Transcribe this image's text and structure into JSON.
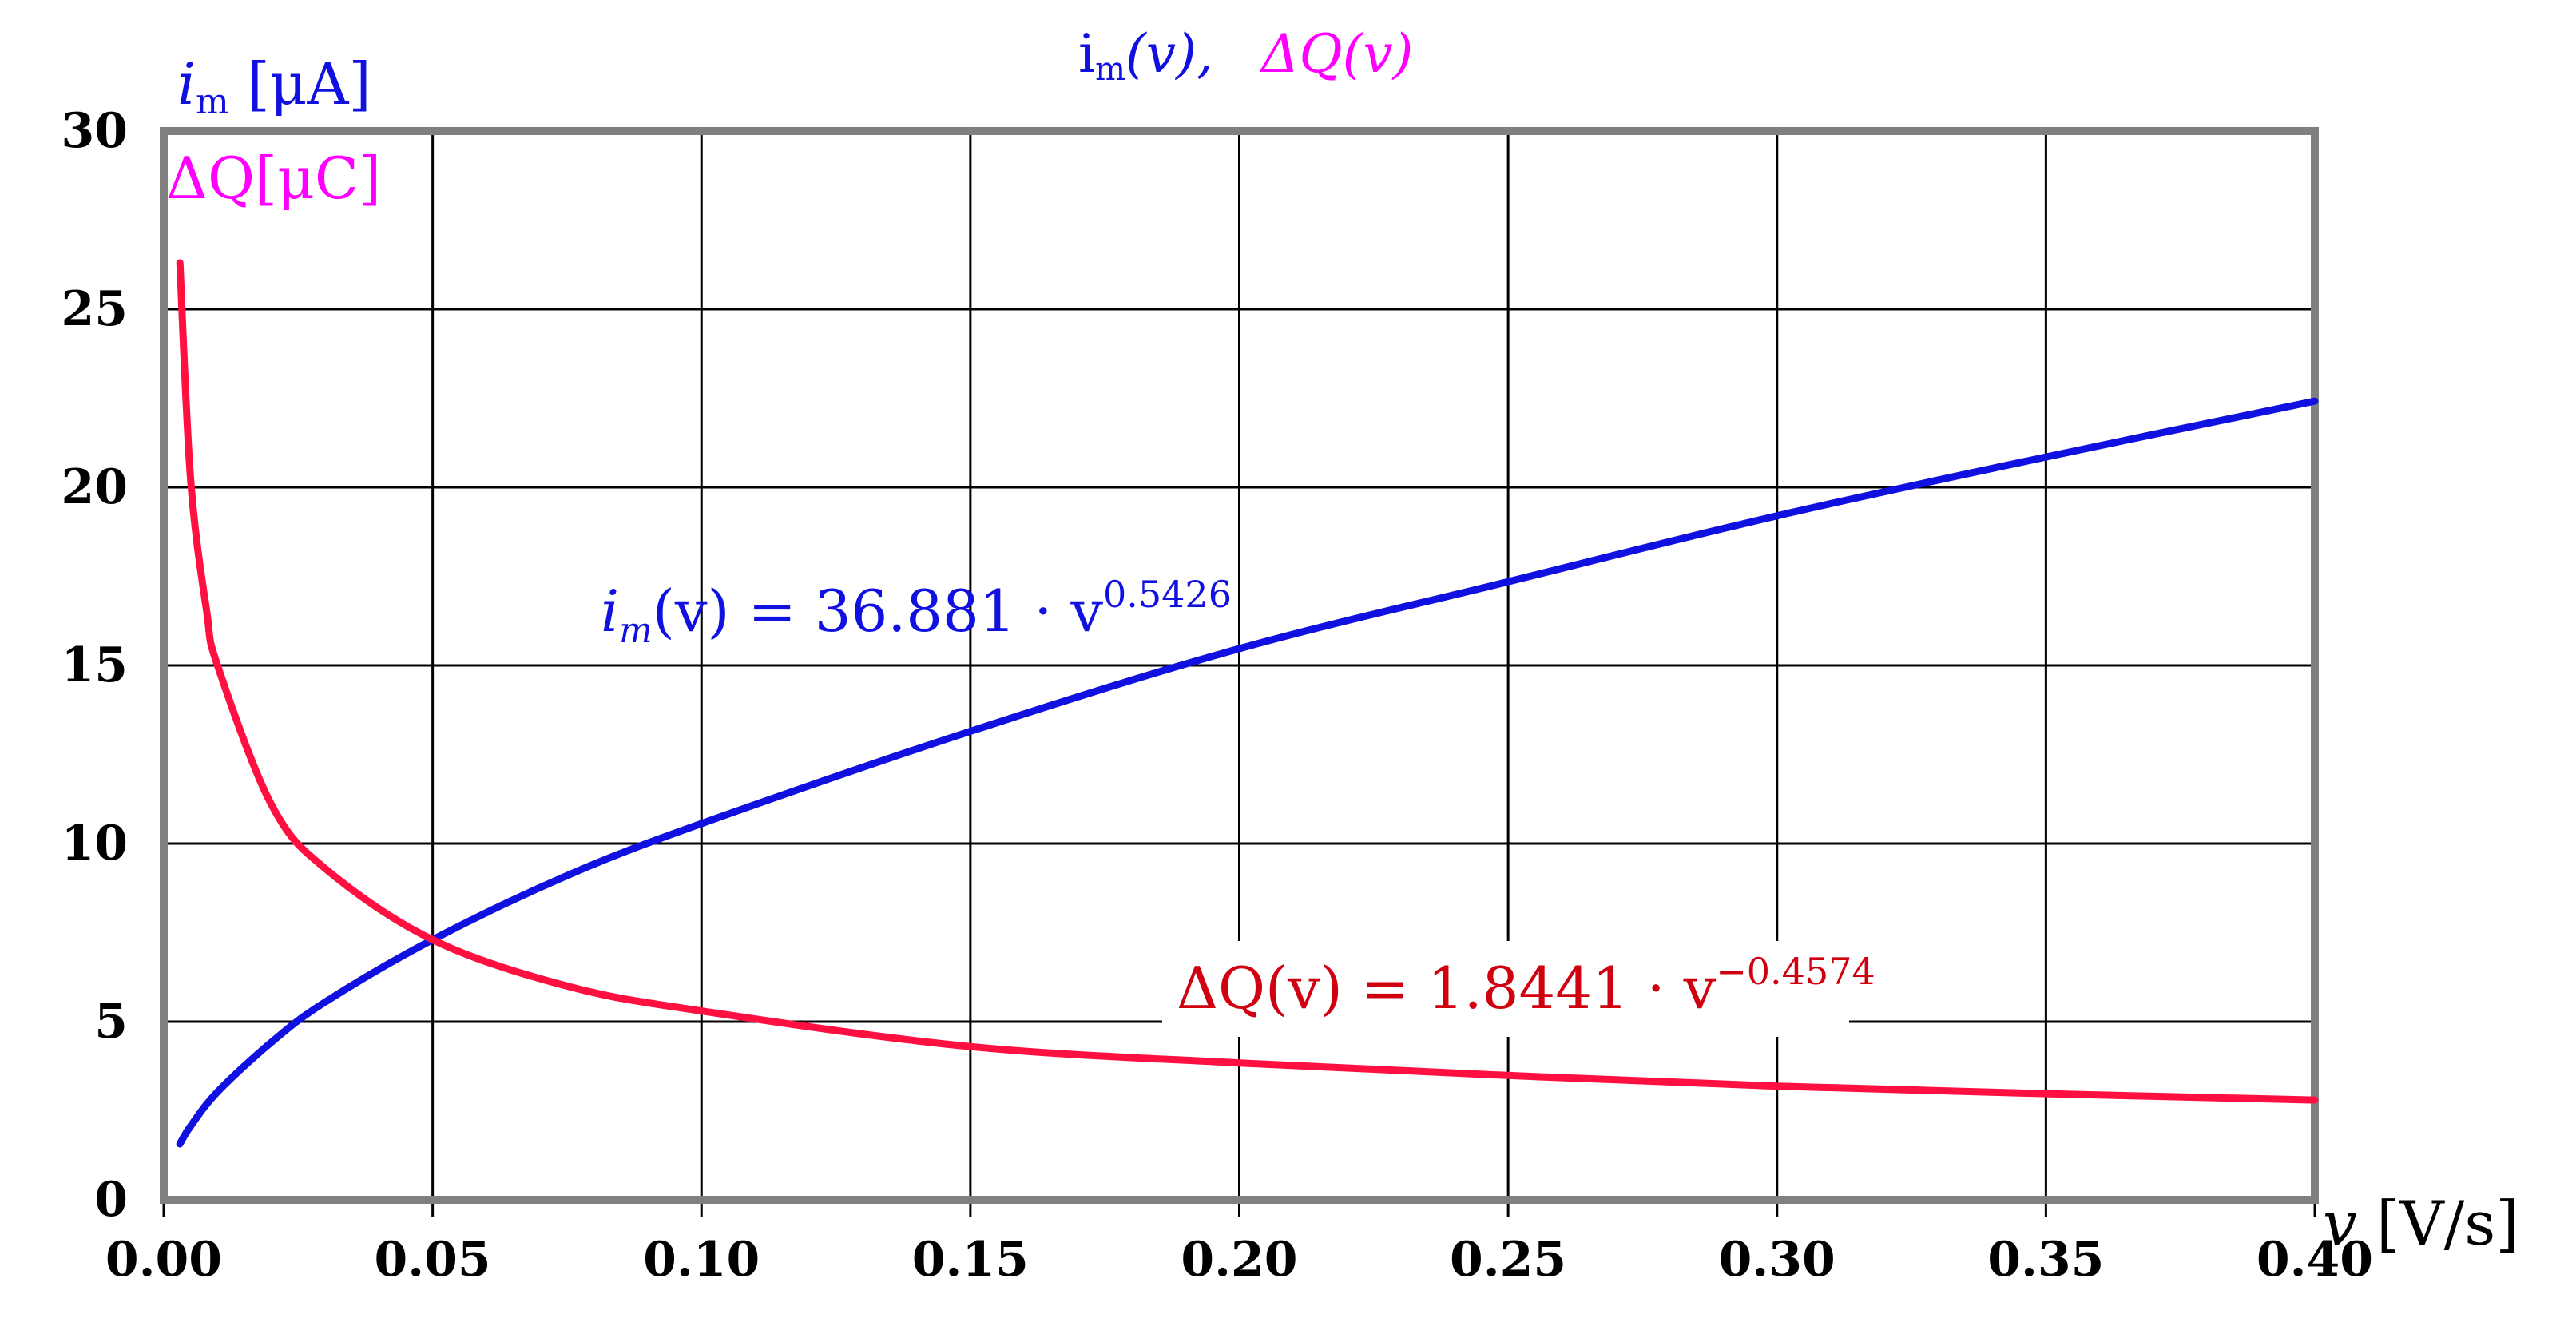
{
  "chart_data": {
    "type": "line",
    "title": {
      "im_label": "i",
      "im_sub": "m",
      "im_arg": "(v),",
      "dq_label": "ΔQ(v)"
    },
    "ylabel": {
      "line1_var": "i",
      "line1_sub": "m",
      "line1_unit": " [μA]",
      "line2": "ΔQ[μC]"
    },
    "xlabel": {
      "var": "v",
      "unit": " [V/s]"
    },
    "xlim": [
      0,
      0.4
    ],
    "ylim": [
      0,
      30
    ],
    "x_ticks": [
      "0.00",
      "0.05",
      "0.10",
      "0.15",
      "0.20",
      "0.25",
      "0.30",
      "0.35",
      "0.40"
    ],
    "y_ticks": [
      "0",
      "5",
      "10",
      "15",
      "20",
      "25",
      "30"
    ],
    "grid": true,
    "series": [
      {
        "name": "i_m(v)",
        "color": "#1010e0",
        "x": [
          0.003,
          0.005,
          0.01,
          0.02,
          0.03,
          0.05,
          0.075,
          0.1,
          0.15,
          0.2,
          0.25,
          0.3,
          0.35,
          0.4
        ],
        "values": [
          1.57,
          2.07,
          3.03,
          4.42,
          5.55,
          7.3,
          9.1,
          10.56,
          13.15,
          15.47,
          17.35,
          19.2,
          20.85,
          22.42
        ],
        "equation": {
          "lhs_var": "i",
          "lhs_sub": "m",
          "lhs_arg": "(v) = 36.881 · v",
          "exp": "0.5426"
        }
      },
      {
        "name": "ΔQ(v)",
        "color": "#ff1040",
        "x": [
          0.003,
          0.005,
          0.008,
          0.01,
          0.02,
          0.03,
          0.05,
          0.075,
          0.1,
          0.15,
          0.2,
          0.25,
          0.3,
          0.35,
          0.4
        ],
        "values": [
          26.3,
          20.2,
          16.5,
          15.0,
          11.1,
          9.3,
          7.3,
          6.0,
          5.3,
          4.3,
          3.84,
          3.49,
          3.19,
          2.98,
          2.8
        ],
        "equation": {
          "lhs": "ΔQ(v) = 1.8441 · v",
          "exp": "−0.4574"
        }
      }
    ]
  }
}
